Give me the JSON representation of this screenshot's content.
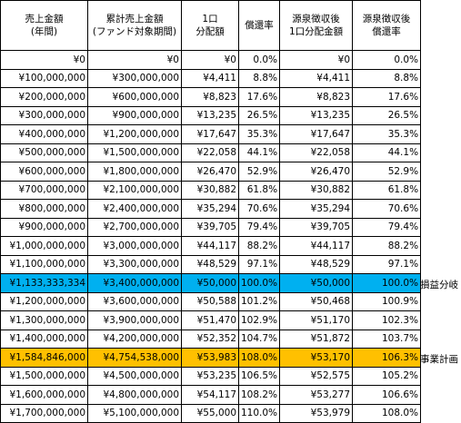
{
  "table": {
    "headers": [
      "売上金額\n(年間)",
      "累計売上金額\n(ファンド対象期間)",
      "1口\n分配額",
      "償還率",
      "源泉徴収後\n1口分配金額",
      "源泉徴収後\n償還率"
    ],
    "rows": [
      {
        "cells": [
          "¥0",
          "¥0",
          "¥0",
          "0.0%",
          "¥0",
          "0.0%"
        ],
        "highlight": "",
        "label": ""
      },
      {
        "cells": [
          "¥100,000,000",
          "¥300,000,000",
          "¥4,411",
          "8.8%",
          "¥4,411",
          "8.8%"
        ],
        "highlight": "",
        "label": ""
      },
      {
        "cells": [
          "¥200,000,000",
          "¥600,000,000",
          "¥8,823",
          "17.6%",
          "¥8,823",
          "17.6%"
        ],
        "highlight": "",
        "label": ""
      },
      {
        "cells": [
          "¥300,000,000",
          "¥900,000,000",
          "¥13,235",
          "26.5%",
          "¥13,235",
          "26.5%"
        ],
        "highlight": "",
        "label": ""
      },
      {
        "cells": [
          "¥400,000,000",
          "¥1,200,000,000",
          "¥17,647",
          "35.3%",
          "¥17,647",
          "35.3%"
        ],
        "highlight": "",
        "label": ""
      },
      {
        "cells": [
          "¥500,000,000",
          "¥1,500,000,000",
          "¥22,058",
          "44.1%",
          "¥22,058",
          "44.1%"
        ],
        "highlight": "",
        "label": ""
      },
      {
        "cells": [
          "¥600,000,000",
          "¥1,800,000,000",
          "¥26,470",
          "52.9%",
          "¥26,470",
          "52.9%"
        ],
        "highlight": "",
        "label": ""
      },
      {
        "cells": [
          "¥700,000,000",
          "¥2,100,000,000",
          "¥30,882",
          "61.8%",
          "¥30,882",
          "61.8%"
        ],
        "highlight": "",
        "label": ""
      },
      {
        "cells": [
          "¥800,000,000",
          "¥2,400,000,000",
          "¥35,294",
          "70.6%",
          "¥35,294",
          "70.6%"
        ],
        "highlight": "",
        "label": ""
      },
      {
        "cells": [
          "¥900,000,000",
          "¥2,700,000,000",
          "¥39,705",
          "79.4%",
          "¥39,705",
          "79.4%"
        ],
        "highlight": "",
        "label": ""
      },
      {
        "cells": [
          "¥1,000,000,000",
          "¥3,000,000,000",
          "¥44,117",
          "88.2%",
          "¥44,117",
          "88.2%"
        ],
        "highlight": "",
        "label": ""
      },
      {
        "cells": [
          "¥1,100,000,000",
          "¥3,300,000,000",
          "¥48,529",
          "97.1%",
          "¥48,529",
          "97.1%"
        ],
        "highlight": "",
        "label": ""
      },
      {
        "cells": [
          "¥1,133,333,334",
          "¥3,400,000,000",
          "¥50,000",
          "100.0%",
          "¥50,000",
          "100.0%"
        ],
        "highlight": "blue",
        "label": "損益分岐"
      },
      {
        "cells": [
          "¥1,200,000,000",
          "¥3,600,000,000",
          "¥50,588",
          "101.2%",
          "¥50,468",
          "100.9%"
        ],
        "highlight": "",
        "label": ""
      },
      {
        "cells": [
          "¥1,300,000,000",
          "¥3,900,000,000",
          "¥51,470",
          "102.9%",
          "¥51,170",
          "102.3%"
        ],
        "highlight": "",
        "label": ""
      },
      {
        "cells": [
          "¥1,400,000,000",
          "¥4,200,000,000",
          "¥52,352",
          "104.7%",
          "¥51,872",
          "103.7%"
        ],
        "highlight": "",
        "label": ""
      },
      {
        "cells": [
          "¥1,584,846,000",
          "¥4,754,538,000",
          "¥53,983",
          "108.0%",
          "¥53,170",
          "106.3%"
        ],
        "highlight": "orange",
        "label": "事業計画"
      },
      {
        "cells": [
          "¥1,500,000,000",
          "¥4,500,000,000",
          "¥53,235",
          "106.5%",
          "¥52,575",
          "105.2%"
        ],
        "highlight": "",
        "label": ""
      },
      {
        "cells": [
          "¥1,600,000,000",
          "¥4,800,000,000",
          "¥54,117",
          "108.2%",
          "¥53,277",
          "106.6%"
        ],
        "highlight": "",
        "label": ""
      },
      {
        "cells": [
          "¥1,700,000,000",
          "¥5,100,000,000",
          "¥55,000",
          "110.0%",
          "¥53,979",
          "108.0%"
        ],
        "highlight": "",
        "label": ""
      }
    ]
  },
  "colors": {
    "blue_highlight": "#00b0f0",
    "orange_highlight": "#ffc000"
  }
}
